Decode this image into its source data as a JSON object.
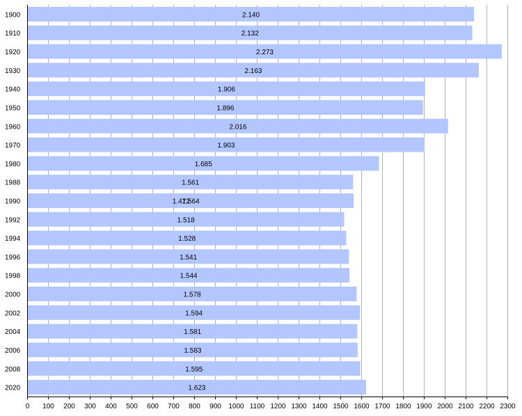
{
  "chart_data": {
    "type": "bar",
    "orientation": "horizontal",
    "categories": [
      "1900",
      "1910",
      "1920",
      "1930",
      "1940",
      "1950",
      "1960",
      "1970",
      "1980",
      "1988",
      "1990",
      "1992",
      "1994",
      "1996",
      "1998",
      "2000",
      "2002",
      "2004",
      "2006",
      "2008",
      "2020"
    ],
    "values": [
      2140,
      2132,
      2273,
      2163,
      1906,
      1896,
      2016,
      1903,
      1685,
      1561,
      1564,
      1518,
      1528,
      1541,
      1544,
      1578,
      1594,
      1581,
      1583,
      1595,
      1623
    ],
    "value_labels": [
      "2.140",
      "2.132",
      "2.273",
      "2.163",
      "1.906",
      "1.896",
      "2.016",
      "1.903",
      "1.685",
      "1.561",
      "1.564",
      "1.518",
      "1.528",
      "1.541",
      "1.544",
      "1.578",
      "1.594",
      "1.581",
      "1.583",
      "1.595",
      "1.623"
    ],
    "extra_annotations": [
      {
        "category": "1990",
        "label": "1.472"
      }
    ],
    "xlim": [
      0,
      2300
    ],
    "xticks": [
      0,
      100,
      200,
      300,
      400,
      500,
      600,
      700,
      800,
      900,
      1000,
      1100,
      1200,
      1300,
      1400,
      1500,
      1600,
      1700,
      1800,
      1900,
      2000,
      2100,
      2200,
      2300
    ],
    "grid": "vertical",
    "legend": "none",
    "colors": {
      "bar": "#b3c6ff",
      "grid": "#b0b0b0",
      "axis": "#000000"
    }
  }
}
